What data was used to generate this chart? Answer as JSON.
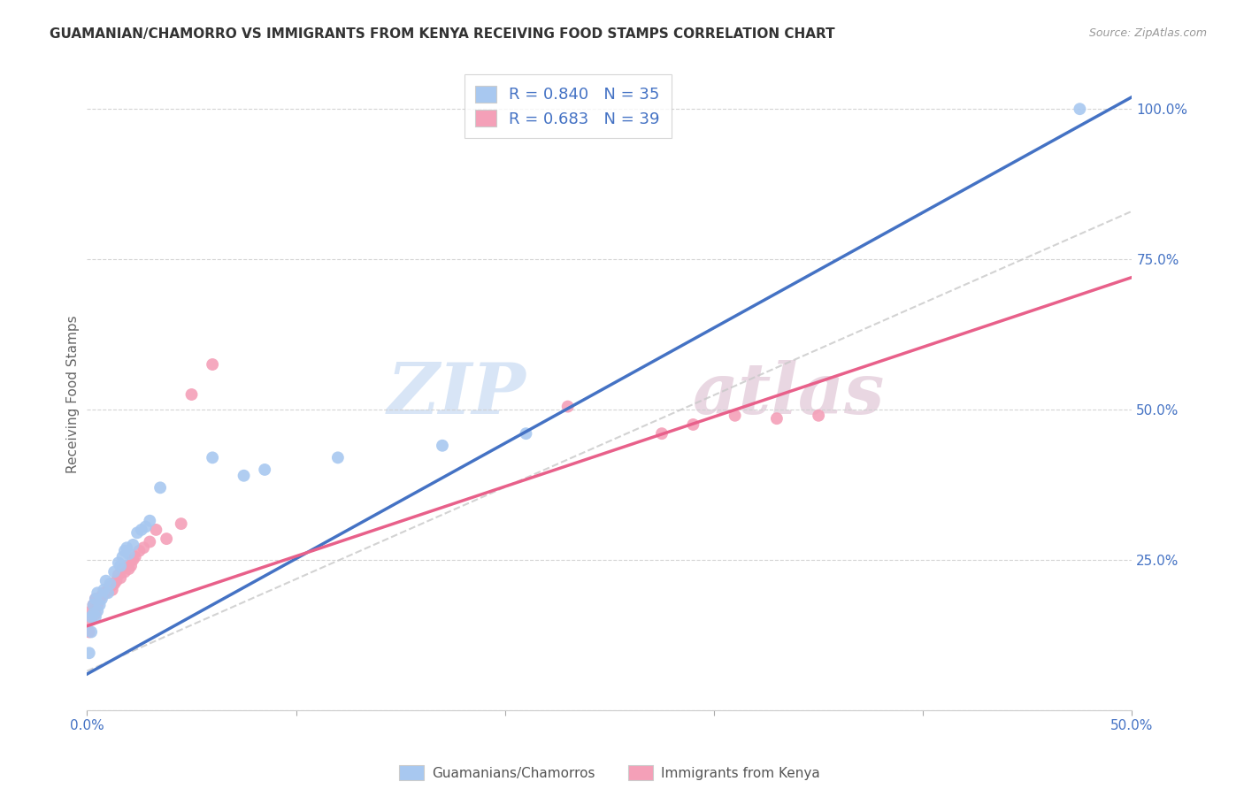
{
  "title": "GUAMANIAN/CHAMORRO VS IMMIGRANTS FROM KENYA RECEIVING FOOD STAMPS CORRELATION CHART",
  "source": "Source: ZipAtlas.com",
  "ylabel": "Receiving Food Stamps",
  "yticks": [
    0.0,
    0.25,
    0.5,
    0.75,
    1.0
  ],
  "ytick_labels": [
    "",
    "25.0%",
    "50.0%",
    "75.0%",
    "100.0%"
  ],
  "xticks": [
    0.0,
    0.1,
    0.2,
    0.3,
    0.4,
    0.5
  ],
  "legend_r1": "0.840",
  "legend_n1": "35",
  "legend_r2": "0.683",
  "legend_n2": "39",
  "color_blue": "#A8C8F0",
  "color_pink": "#F4A0B8",
  "color_blue_line": "#4472C4",
  "color_pink_line": "#E8608A",
  "color_ref_line": "#C8C8C8",
  "watermark_zip": "ZIP",
  "watermark_atlas": "atlas",
  "legend_label_blue": "Guamanians/Chamorros",
  "legend_label_pink": "Immigrants from Kenya",
  "blue_scatter_x": [
    0.001,
    0.002,
    0.002,
    0.003,
    0.003,
    0.004,
    0.004,
    0.005,
    0.005,
    0.006,
    0.007,
    0.008,
    0.009,
    0.01,
    0.011,
    0.013,
    0.015,
    0.016,
    0.017,
    0.018,
    0.019,
    0.02,
    0.022,
    0.024,
    0.026,
    0.028,
    0.03,
    0.035,
    0.06,
    0.075,
    0.085,
    0.12,
    0.17,
    0.21,
    0.475
  ],
  "blue_scatter_y": [
    0.095,
    0.13,
    0.155,
    0.16,
    0.175,
    0.155,
    0.185,
    0.165,
    0.195,
    0.175,
    0.185,
    0.2,
    0.215,
    0.195,
    0.21,
    0.23,
    0.245,
    0.24,
    0.255,
    0.265,
    0.27,
    0.26,
    0.275,
    0.295,
    0.3,
    0.305,
    0.315,
    0.37,
    0.42,
    0.39,
    0.4,
    0.42,
    0.44,
    0.46,
    1.0
  ],
  "pink_scatter_x": [
    0.001,
    0.002,
    0.002,
    0.003,
    0.004,
    0.004,
    0.005,
    0.006,
    0.007,
    0.008,
    0.009,
    0.01,
    0.011,
    0.012,
    0.013,
    0.014,
    0.015,
    0.016,
    0.017,
    0.018,
    0.019,
    0.02,
    0.021,
    0.022,
    0.023,
    0.025,
    0.027,
    0.03,
    0.033,
    0.038,
    0.045,
    0.05,
    0.06,
    0.23,
    0.275,
    0.29,
    0.31,
    0.33,
    0.35
  ],
  "pink_scatter_y": [
    0.13,
    0.15,
    0.165,
    0.175,
    0.16,
    0.185,
    0.175,
    0.185,
    0.19,
    0.195,
    0.195,
    0.2,
    0.205,
    0.2,
    0.21,
    0.215,
    0.225,
    0.22,
    0.235,
    0.23,
    0.24,
    0.235,
    0.24,
    0.25,
    0.255,
    0.265,
    0.27,
    0.28,
    0.3,
    0.285,
    0.31,
    0.525,
    0.575,
    0.505,
    0.46,
    0.475,
    0.49,
    0.485,
    0.49
  ],
  "blue_line_x0": 0.0,
  "blue_line_x1": 0.5,
  "blue_line_y0": 0.06,
  "blue_line_y1": 1.02,
  "pink_line_x0": 0.0,
  "pink_line_x1": 0.5,
  "pink_line_y0": 0.14,
  "pink_line_y1": 0.72,
  "ref_line_x0": 0.0,
  "ref_line_x1": 0.5,
  "ref_line_y0": 0.065,
  "ref_line_y1": 0.83,
  "xmin": 0.0,
  "xmax": 0.5,
  "ymin": 0.0,
  "ymax": 1.05,
  "scatter_size": 100
}
